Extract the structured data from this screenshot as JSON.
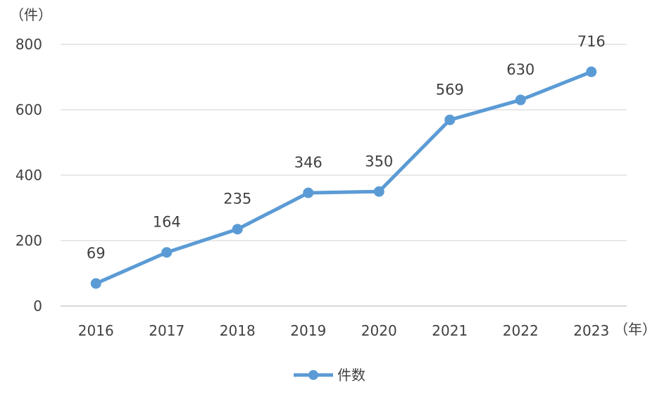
{
  "chart_data": {
    "type": "line",
    "title": "",
    "xlabel": "",
    "ylabel": "",
    "y_unit": "（件）",
    "x_unit": "（年）",
    "categories": [
      "2016",
      "2017",
      "2018",
      "2019",
      "2020",
      "2021",
      "2022",
      "2023"
    ],
    "series": [
      {
        "name": "件数",
        "values": [
          69,
          164,
          235,
          346,
          350,
          569,
          630,
          716
        ],
        "color": "#5b9bd5"
      }
    ],
    "y_ticks": [
      "0",
      "200",
      "400",
      "600",
      "800"
    ],
    "ylim": [
      0,
      800
    ],
    "grid": true,
    "data_labels": true,
    "legend": "bottom"
  }
}
